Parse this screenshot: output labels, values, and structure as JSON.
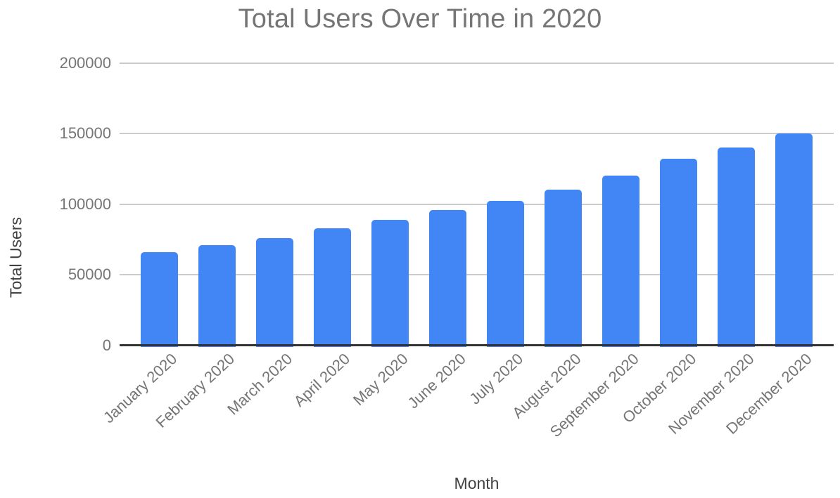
{
  "chart_data": {
    "type": "bar",
    "title": "Total Users Over Time in 2020",
    "xlabel": "Month",
    "ylabel": "Total Users",
    "categories": [
      "January 2020",
      "February 2020",
      "March 2020",
      "April 2020",
      "May 2020",
      "June 2020",
      "July 2020",
      "August 2020",
      "September 2020",
      "October 2020",
      "November 2020",
      "December 2020"
    ],
    "values": [
      66000,
      71000,
      76000,
      83000,
      89000,
      96000,
      102000,
      110000,
      120000,
      132000,
      140000,
      150000
    ],
    "ylim": [
      0,
      200000
    ],
    "yticks": [
      0,
      50000,
      100000,
      150000,
      200000
    ],
    "ytick_labels": [
      "0",
      "50000",
      "100000",
      "150000",
      "200000"
    ],
    "grid": true,
    "legend": "none",
    "bar_color": "#4285f4",
    "colors": {
      "title_text": "#757575",
      "tick_label_text": "#757575",
      "axis_title_text": "#424242",
      "gridline": "#cbcbcb",
      "axis_line": "#333333",
      "background": "#ffffff"
    }
  }
}
